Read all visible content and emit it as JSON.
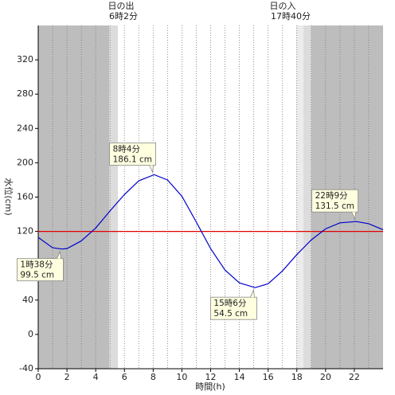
{
  "chart_data": {
    "type": "line",
    "x_label": "時間(h)",
    "y_label": "水位(cm)",
    "sunrise": [
      "日の出",
      "6時2分"
    ],
    "sunset": [
      "日の入",
      "17時40分"
    ],
    "x": [
      0,
      1,
      1.63,
      2,
      3,
      4,
      5,
      6,
      7,
      8.07,
      9,
      10,
      11,
      12,
      13,
      14,
      15.1,
      16,
      17,
      18,
      19,
      20,
      21,
      22.15,
      23,
      24
    ],
    "series": [
      {
        "name": "水位",
        "color": "#0000cc",
        "values": [
          113,
          101,
          99.5,
          100,
          109,
          124,
          144,
          163,
          179,
          186.1,
          180,
          161,
          131,
          100,
          75,
          60,
          54.5,
          59,
          74,
          93,
          110,
          123,
          130,
          131.5,
          129,
          122
        ]
      }
    ],
    "reference_line": {
      "value": 120,
      "color": "#e00000"
    },
    "annotations": [
      {
        "x": 1.63,
        "y": 99.5,
        "lines": [
          "1時38分",
          "99.5 cm"
        ]
      },
      {
        "x": 8.07,
        "y": 186.1,
        "lines": [
          "8時4分",
          "186.1 cm"
        ]
      },
      {
        "x": 15.1,
        "y": 54.5,
        "lines": [
          "15時6分",
          "54.5 cm"
        ]
      },
      {
        "x": 22.15,
        "y": 131.5,
        "lines": [
          "22時9分",
          "131.5 cm"
        ]
      }
    ],
    "xlim": [
      0,
      24
    ],
    "xticks": [
      0,
      2,
      4,
      6,
      8,
      10,
      12,
      14,
      16,
      18,
      20,
      22
    ],
    "ylim": [
      -40,
      360
    ],
    "yticks": [
      -40,
      0,
      40,
      80,
      120,
      160,
      200,
      240,
      280,
      320
    ]
  }
}
